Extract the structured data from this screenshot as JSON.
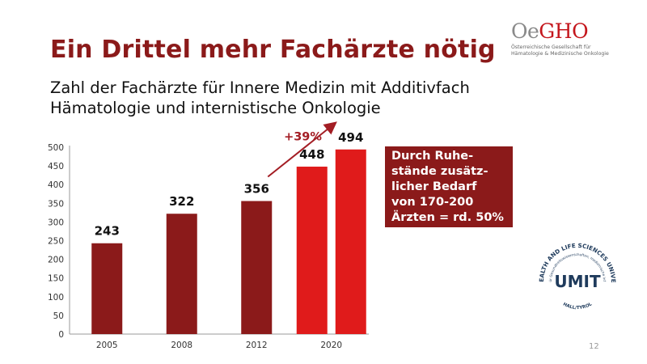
{
  "slide": {
    "title": "Ein Drittel mehr Fachärzte nötig",
    "subtitle_lines": [
      "Zahl der Fachärzte für Innere Medizin mit Additivfach",
      "Hämatologie und internistische Onkologie"
    ],
    "page_number": "12"
  },
  "logo_oegho": {
    "mark_grey": "Oe",
    "mark_red": "GHO",
    "sub_lines": [
      "Österreichische Gesellschaft für",
      "Hämatologie & Medizinische Onkologie"
    ]
  },
  "callout": {
    "lines": [
      "Durch Ruhe-",
      "stände zusätz-",
      "licher Bedarf",
      "von 170-200",
      "Ärzten = rd. 50%"
    ]
  },
  "umit_logo": {
    "name": "UMIT",
    "ring_text": "THE HEALTH AND LIFE SCIENCES UNIVERSITY",
    "inner_text": "private Universität für Gesundheitswissenschaften, medizinische Informatik und Technik",
    "location": "HALL/TYROL"
  },
  "colors": {
    "title": "#8B1A1A",
    "bar_dark": "#8B1A1A",
    "bar_bright": "#E01B1B",
    "arrow": "#A31D24"
  },
  "chart_data": {
    "type": "bar",
    "title": "Zahl der Fachärzte für Innere Medizin mit Additivfach Hämatologie und internistische Onkologie",
    "xlabel": "",
    "ylabel": "",
    "ylim": [
      0,
      500
    ],
    "y_ticks": [
      0,
      50,
      100,
      150,
      200,
      250,
      300,
      350,
      400,
      450,
      500
    ],
    "categories": [
      "2005",
      "2008",
      "2012",
      "2020"
    ],
    "bars": [
      {
        "category": "2005",
        "value": 243,
        "label": "243",
        "color": "#8B1A1A"
      },
      {
        "category": "2008",
        "value": 322,
        "label": "322",
        "color": "#8B1A1A"
      },
      {
        "category": "2012",
        "value": 356,
        "label": "356",
        "color": "#8B1A1A"
      },
      {
        "category": "2020",
        "value": 448,
        "label": "448",
        "color": "#E01B1B"
      },
      {
        "category": "2020",
        "value": 494,
        "label": "494",
        "color": "#E01B1B"
      }
    ],
    "annotation": {
      "text": "+39%",
      "from": "356",
      "to": "494"
    },
    "grid": false
  }
}
